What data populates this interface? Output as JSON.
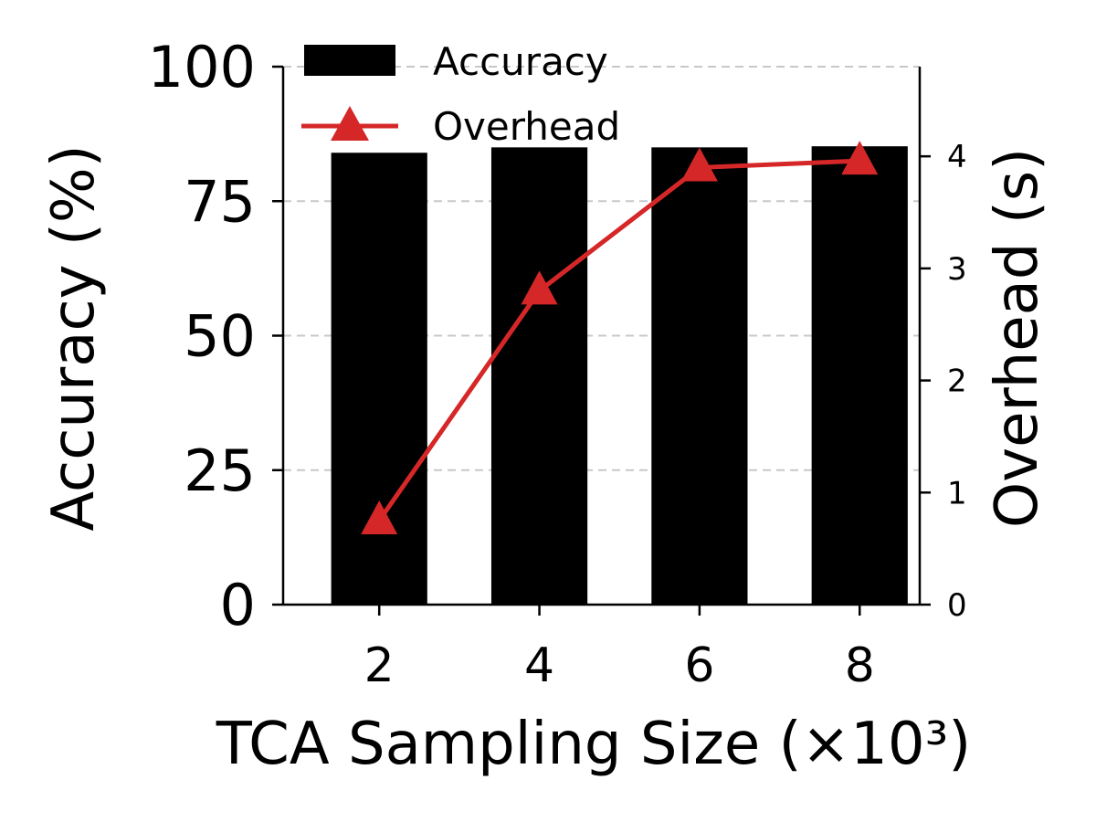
{
  "chart_data": {
    "type": "bar",
    "x": [
      2,
      4,
      6,
      8
    ],
    "categories": [
      "2",
      "4",
      "6",
      "8"
    ],
    "xlabel": "TCA Sampling Size (×10³)",
    "ylabel": "Accuracy (%)",
    "y2label": "Overhead (s)",
    "ylim": [
      0,
      100
    ],
    "y2lim": [
      0,
      4.8
    ],
    "yticks": [
      "0",
      "25",
      "50",
      "75",
      "100"
    ],
    "y2ticks": [
      "0",
      "1",
      "2",
      "3",
      "4"
    ],
    "grid": "horizontal dashed",
    "legend_position": "top-left",
    "series": [
      {
        "name": "Accuracy",
        "kind": "bar",
        "axis": "left",
        "color": "#000000",
        "values": [
          84,
          85,
          85,
          85.2
        ]
      },
      {
        "name": "Overhead",
        "kind": "line",
        "marker": "triangle",
        "axis": "right",
        "color": "#d62728",
        "values": [
          0.75,
          2.8,
          3.9,
          3.96
        ]
      }
    ]
  }
}
